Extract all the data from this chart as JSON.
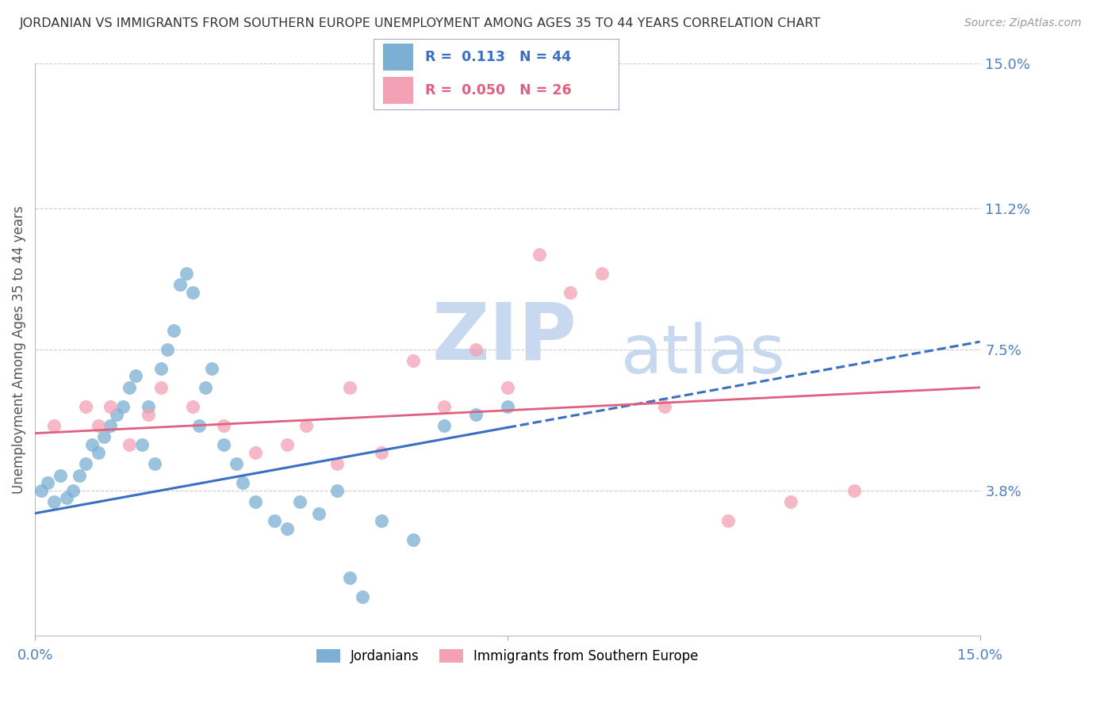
{
  "title": "JORDANIAN VS IMMIGRANTS FROM SOUTHERN EUROPE UNEMPLOYMENT AMONG AGES 35 TO 44 YEARS CORRELATION CHART",
  "source": "Source: ZipAtlas.com",
  "ylabel": "Unemployment Among Ages 35 to 44 years",
  "xlim": [
    0.0,
    0.15
  ],
  "ylim": [
    0.0,
    0.15
  ],
  "ytick_labels": [
    "3.8%",
    "7.5%",
    "11.2%",
    "15.0%"
  ],
  "ytick_values": [
    0.038,
    0.075,
    0.112,
    0.15
  ],
  "xtick_labels": [
    "0.0%",
    "15.0%"
  ],
  "xtick_values": [
    0.0,
    0.15
  ],
  "grid_color": "#cccccc",
  "watermark_zip": "ZIP",
  "watermark_atlas": "atlas",
  "watermark_color": "#c8d8ee",
  "blue_color": "#7bafd4",
  "pink_color": "#f4a0b5",
  "blue_line_color": "#3a6fc4",
  "pink_line_color": "#e06080",
  "legend_R1": "0.113",
  "legend_N1": "44",
  "legend_R2": "0.050",
  "legend_N2": "26",
  "legend_label1": "Jordanians",
  "legend_label2": "Immigrants from Southern Europe",
  "blue_line_solid_end": 0.075,
  "jordanians_x": [
    0.001,
    0.002,
    0.003,
    0.004,
    0.005,
    0.006,
    0.007,
    0.008,
    0.009,
    0.01,
    0.011,
    0.012,
    0.013,
    0.014,
    0.015,
    0.016,
    0.017,
    0.018,
    0.019,
    0.02,
    0.021,
    0.022,
    0.023,
    0.024,
    0.025,
    0.026,
    0.027,
    0.028,
    0.03,
    0.032,
    0.033,
    0.035,
    0.038,
    0.04,
    0.042,
    0.045,
    0.048,
    0.05,
    0.052,
    0.055,
    0.06,
    0.065,
    0.07,
    0.075
  ],
  "jordanians_y": [
    0.038,
    0.04,
    0.035,
    0.042,
    0.036,
    0.038,
    0.042,
    0.045,
    0.05,
    0.048,
    0.052,
    0.055,
    0.058,
    0.06,
    0.065,
    0.068,
    0.05,
    0.06,
    0.045,
    0.07,
    0.075,
    0.08,
    0.092,
    0.095,
    0.09,
    0.055,
    0.065,
    0.07,
    0.05,
    0.045,
    0.04,
    0.035,
    0.03,
    0.028,
    0.035,
    0.032,
    0.038,
    0.015,
    0.01,
    0.03,
    0.025,
    0.055,
    0.058,
    0.06
  ],
  "immigrants_x": [
    0.003,
    0.008,
    0.01,
    0.012,
    0.015,
    0.018,
    0.02,
    0.025,
    0.03,
    0.035,
    0.04,
    0.043,
    0.048,
    0.05,
    0.055,
    0.06,
    0.065,
    0.07,
    0.075,
    0.08,
    0.085,
    0.09,
    0.1,
    0.11,
    0.12,
    0.13
  ],
  "immigrants_y": [
    0.055,
    0.06,
    0.055,
    0.06,
    0.05,
    0.058,
    0.065,
    0.06,
    0.055,
    0.048,
    0.05,
    0.055,
    0.045,
    0.065,
    0.048,
    0.072,
    0.06,
    0.075,
    0.065,
    0.1,
    0.09,
    0.095,
    0.06,
    0.03,
    0.035,
    0.038
  ]
}
